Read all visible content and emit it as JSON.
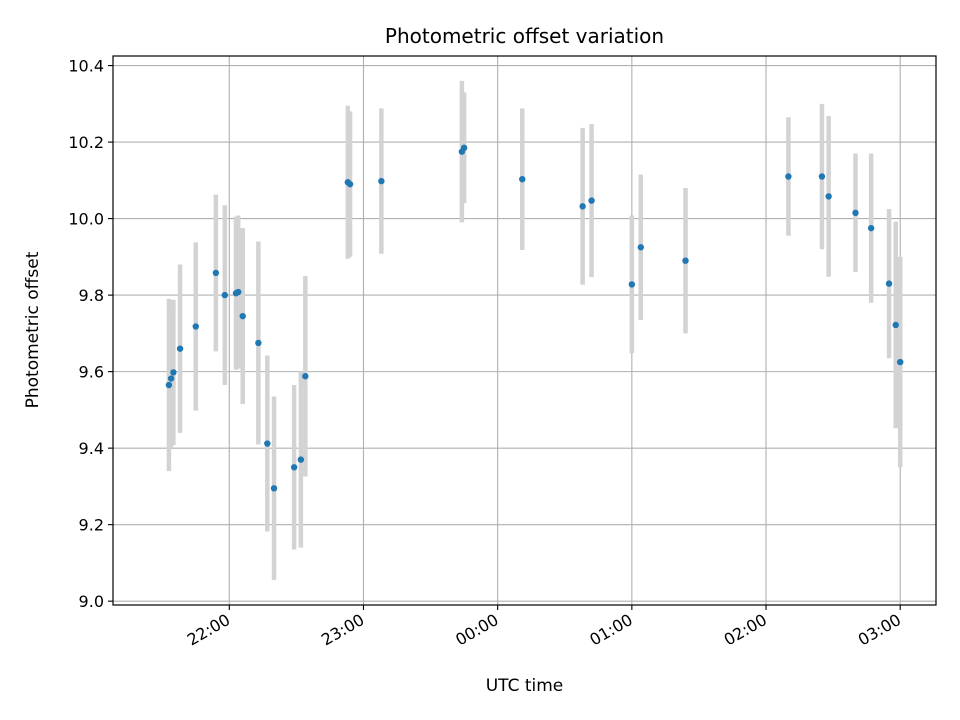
{
  "chart_data": {
    "type": "scatter",
    "title": "Photometric offset variation",
    "xlabel": "UTC time",
    "ylabel": "Photometric offset",
    "x_tick_labels": [
      "22:00",
      "23:00",
      "00:00",
      "01:00",
      "02:00",
      "03:00"
    ],
    "y_tick_labels": [
      "9.0",
      "9.2",
      "9.4",
      "9.6",
      "9.8",
      "10.0",
      "10.2",
      "10.4"
    ],
    "x_range_minutes_after_2200": [
      -52,
      316
    ],
    "ylim": [
      8.99,
      10.425
    ],
    "grid": true,
    "marker_color": "#1f77b4",
    "errorbar_color": "#d3d3d3",
    "points": [
      {
        "time": "21:33",
        "y": 9.565,
        "yerr": 0.225
      },
      {
        "time": "21:34",
        "y": 9.582,
        "yerr": 0.18
      },
      {
        "time": "21:35",
        "y": 9.598,
        "yerr": 0.19
      },
      {
        "time": "21:38",
        "y": 9.66,
        "yerr": 0.22
      },
      {
        "time": "21:45",
        "y": 9.718,
        "yerr": 0.22
      },
      {
        "time": "21:54",
        "y": 9.858,
        "yerr": 0.205
      },
      {
        "time": "21:58",
        "y": 9.8,
        "yerr": 0.235
      },
      {
        "time": "22:03",
        "y": 9.805,
        "yerr": 0.2
      },
      {
        "time": "22:04",
        "y": 9.808,
        "yerr": 0.2
      },
      {
        "time": "22:06",
        "y": 9.745,
        "yerr": 0.23
      },
      {
        "time": "22:13",
        "y": 9.675,
        "yerr": 0.265
      },
      {
        "time": "22:17",
        "y": 9.412,
        "yerr": 0.23
      },
      {
        "time": "22:20",
        "y": 9.295,
        "yerr": 0.24
      },
      {
        "time": "22:29",
        "y": 9.35,
        "yerr": 0.215
      },
      {
        "time": "22:32",
        "y": 9.37,
        "yerr": 0.23
      },
      {
        "time": "22:34",
        "y": 9.588,
        "yerr": 0.262
      },
      {
        "time": "22:53",
        "y": 10.095,
        "yerr": 0.2
      },
      {
        "time": "22:54",
        "y": 10.09,
        "yerr": 0.19
      },
      {
        "time": "23:08",
        "y": 10.098,
        "yerr": 0.19
      },
      {
        "time": "23:44",
        "y": 10.175,
        "yerr": 0.185
      },
      {
        "time": "23:45",
        "y": 10.185,
        "yerr": 0.145
      },
      {
        "time": "00:11",
        "y": 10.103,
        "yerr": 0.185
      },
      {
        "time": "00:38",
        "y": 10.032,
        "yerr": 0.205
      },
      {
        "time": "00:42",
        "y": 10.047,
        "yerr": 0.2
      },
      {
        "time": "01:00",
        "y": 9.828,
        "yerr": 0.18
      },
      {
        "time": "01:04",
        "y": 9.925,
        "yerr": 0.19
      },
      {
        "time": "01:24",
        "y": 9.89,
        "yerr": 0.19
      },
      {
        "time": "02:10",
        "y": 10.11,
        "yerr": 0.155
      },
      {
        "time": "02:25",
        "y": 10.11,
        "yerr": 0.19
      },
      {
        "time": "02:28",
        "y": 10.058,
        "yerr": 0.21
      },
      {
        "time": "02:40",
        "y": 10.015,
        "yerr": 0.155
      },
      {
        "time": "02:47",
        "y": 9.975,
        "yerr": 0.195
      },
      {
        "time": "02:55",
        "y": 9.83,
        "yerr": 0.195
      },
      {
        "time": "02:58",
        "y": 9.722,
        "yerr": 0.27
      },
      {
        "time": "03:00",
        "y": 9.625,
        "yerr": 0.275
      }
    ]
  }
}
